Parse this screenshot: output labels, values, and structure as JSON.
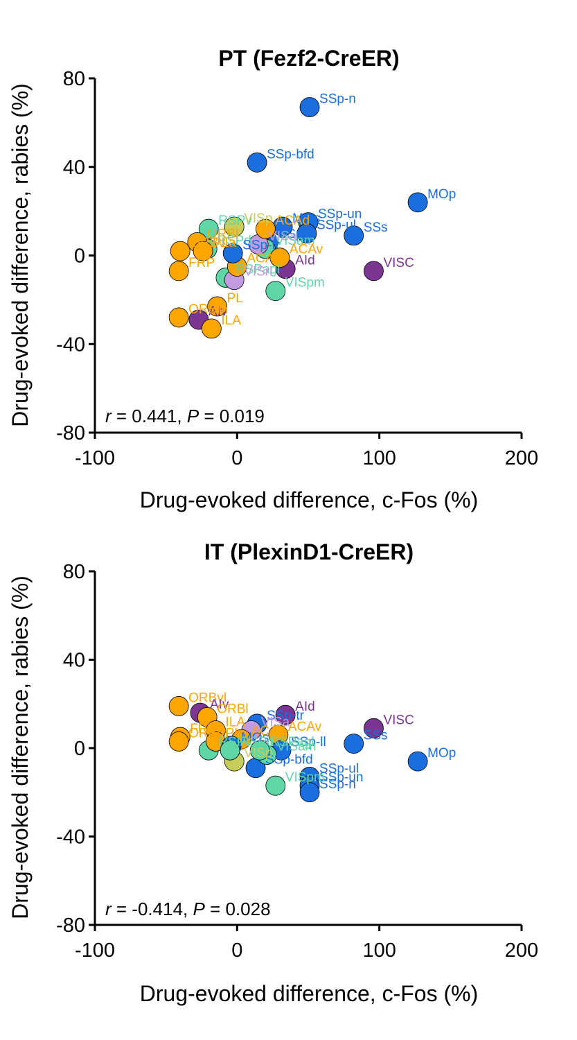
{
  "colors": {
    "blue": "#1a6fe0",
    "purple": "#7b3592",
    "orange": "#ffa500",
    "teal": "#5fd6a6",
    "lilac": "#c39be0",
    "olive": "#c8cc5a"
  },
  "chart_data": [
    {
      "type": "scatter",
      "title": "PT (Fezf2-CreER)",
      "xlabel": "Drug-evoked difference, c-Fos (%)",
      "ylabel": "Drug-evoked difference, rabies (%)",
      "xlim": [
        -100,
        200
      ],
      "ylim": [
        -80,
        80
      ],
      "xticks": [
        "-100",
        "0",
        "100",
        "200"
      ],
      "yticks": [
        "80",
        "40",
        "0",
        "-40",
        "-80"
      ],
      "stat": {
        "r_symbol": "r",
        "r_value": " = 0.441, ",
        "p_symbol": "P",
        "p_value": " = 0.019"
      },
      "points": [
        {
          "label": "SSp-n",
          "x": 51,
          "y": 67,
          "color": "blue"
        },
        {
          "label": "SSp-bfd",
          "x": 14,
          "y": 42,
          "color": "blue"
        },
        {
          "label": "MOp",
          "x": 127,
          "y": 24,
          "color": "blue"
        },
        {
          "label": "SSp-un",
          "x": 50,
          "y": 15,
          "color": "blue"
        },
        {
          "label": "SSp-ul",
          "x": 49,
          "y": 10,
          "color": "blue"
        },
        {
          "label": "SSs",
          "x": 82,
          "y": 9,
          "color": "blue"
        },
        {
          "label": "MOs",
          "x": 32,
          "y": 13,
          "color": "blue"
        },
        {
          "label": "SSp-ll",
          "x": 22,
          "y": 6,
          "color": "blue"
        },
        {
          "label": "VISC",
          "x": 96,
          "y": -7,
          "color": "purple"
        },
        {
          "label": "AId",
          "x": 34,
          "y": -6,
          "color": "purple"
        },
        {
          "label": "AIv",
          "x": -27,
          "y": -29,
          "color": "purple"
        },
        {
          "label": "RSPv",
          "x": -20,
          "y": 12,
          "color": "teal"
        },
        {
          "label": "VISpm",
          "x": 27,
          "y": -16,
          "color": "teal"
        },
        {
          "label": "VISam",
          "x": 20,
          "y": 3,
          "color": "teal"
        },
        {
          "label": "RSPd",
          "x": -21,
          "y": 3,
          "color": "teal"
        },
        {
          "label": "RSPagl",
          "x": -8,
          "y": -10,
          "color": "teal"
        },
        {
          "label": "VISa",
          "x": 15,
          "y": 5,
          "color": "lilac"
        },
        {
          "label": "VISrl",
          "x": -2,
          "y": -11,
          "color": "lilac"
        },
        {
          "label": "VISp",
          "x": -2,
          "y": 13,
          "color": "olive"
        },
        {
          "label": "ACAd",
          "x": 20,
          "y": 12,
          "color": "orange"
        },
        {
          "label": "ACAv",
          "x": 30,
          "y": -1,
          "color": "orange"
        },
        {
          "label": "ORBl",
          "x": -28,
          "y": 6,
          "color": "orange"
        },
        {
          "label": "ORBvl",
          "x": -40,
          "y": 2,
          "color": "orange"
        },
        {
          "label": "ORBm",
          "x": -41,
          "y": -28,
          "color": "orange"
        },
        {
          "label": "PL",
          "x": -14,
          "y": -23,
          "color": "orange"
        },
        {
          "label": "ILA",
          "x": -18,
          "y": -33,
          "color": "orange"
        },
        {
          "label": "FRP",
          "x": -41,
          "y": -7,
          "color": "orange"
        },
        {
          "label": "ACA",
          "x": 0,
          "y": -5,
          "color": "orange"
        },
        {
          "label": "PLa",
          "x": -24,
          "y": 2,
          "color": "orange"
        },
        {
          "label": "SSp-tr",
          "x": -3,
          "y": 1,
          "color": "blue"
        }
      ]
    },
    {
      "type": "scatter",
      "title": "IT (PlexinD1-CreER)",
      "xlabel": "Drug-evoked difference, c-Fos (%)",
      "ylabel": "Drug-evoked difference, rabies (%)",
      "xlim": [
        -100,
        200
      ],
      "ylim": [
        -80,
        80
      ],
      "xticks": [
        "-100",
        "0",
        "100",
        "200"
      ],
      "yticks": [
        "80",
        "40",
        "0",
        "-40",
        "-80"
      ],
      "stat": {
        "r_symbol": "r",
        "r_value": " = -0.414, ",
        "p_symbol": "P",
        "p_value": " = 0.028"
      },
      "points": [
        {
          "label": "ORBvl",
          "x": -41,
          "y": 19,
          "color": "orange"
        },
        {
          "label": "AIv",
          "x": -26,
          "y": 16,
          "color": "purple"
        },
        {
          "label": "ORBl",
          "x": -21,
          "y": 14,
          "color": "orange"
        },
        {
          "label": "AId",
          "x": 34,
          "y": 15,
          "color": "purple"
        },
        {
          "label": "VISC",
          "x": 96,
          "y": 9,
          "color": "purple"
        },
        {
          "label": "SSs",
          "x": 82,
          "y": 2,
          "color": "blue"
        },
        {
          "label": "MOp",
          "x": 127,
          "y": -6,
          "color": "blue"
        },
        {
          "label": "SSp-tr",
          "x": 14,
          "y": 11,
          "color": "blue"
        },
        {
          "label": "ILA",
          "x": -15,
          "y": 8,
          "color": "orange"
        },
        {
          "label": "ACAv",
          "x": 29,
          "y": 6,
          "color": "orange"
        },
        {
          "label": "SSp-ll",
          "x": 31,
          "y": -1,
          "color": "blue"
        },
        {
          "label": "SSp-bfd",
          "x": 13,
          "y": -9,
          "color": "blue"
        },
        {
          "label": "SSp-ul",
          "x": 51,
          "y": -13,
          "color": "blue"
        },
        {
          "label": "SSp-un",
          "x": 51,
          "y": -17,
          "color": "blue"
        },
        {
          "label": "SSp-n",
          "x": 51,
          "y": -20,
          "color": "blue"
        },
        {
          "label": "VISpm",
          "x": 27,
          "y": -17,
          "color": "teal"
        },
        {
          "label": "VISam",
          "x": 21,
          "y": -3,
          "color": "teal"
        },
        {
          "label": "RSPv",
          "x": -20,
          "y": -1,
          "color": "teal"
        },
        {
          "label": "VISp",
          "x": -2,
          "y": -6,
          "color": "olive"
        },
        {
          "label": "VISa",
          "x": 10,
          "y": 8,
          "color": "lilac"
        },
        {
          "label": "FRP",
          "x": -40,
          "y": 5,
          "color": "orange"
        },
        {
          "label": "ORBm",
          "x": -41,
          "y": 3,
          "color": "orange"
        },
        {
          "label": "PL",
          "x": -15,
          "y": 3,
          "color": "orange"
        },
        {
          "label": "ACAd",
          "x": 3,
          "y": 4,
          "color": "orange"
        },
        {
          "label": "MOs",
          "x": -4,
          "y": 1,
          "color": "blue"
        },
        {
          "label": "RSPd",
          "x": -5,
          "y": -1,
          "color": "teal"
        },
        {
          "label": "RSPagl",
          "x": 16,
          "y": -1,
          "color": "teal"
        }
      ]
    }
  ]
}
